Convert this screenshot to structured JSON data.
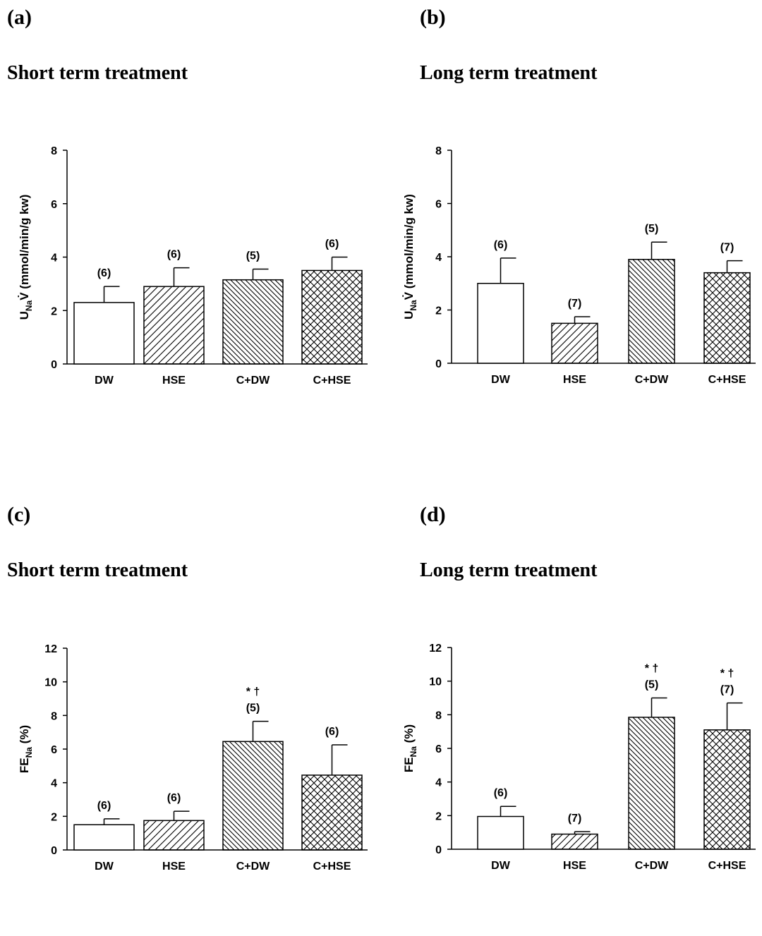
{
  "chart_data": [
    {
      "type": "bar",
      "panel": "(a)",
      "title": "Short term treatment",
      "ylabel_main": "U",
      "ylabel_sub": "Na",
      "ylabel_v": "V̇",
      "ylabel_unit": " (mmol/min/g kw)",
      "ylim": [
        0,
        8
      ],
      "yticks": [
        "0",
        "2",
        "4",
        "6",
        "8"
      ],
      "categories": [
        "DW",
        "HSE",
        "C+DW",
        "C+HSE"
      ],
      "values": [
        2.3,
        2.9,
        3.15,
        3.5
      ],
      "errors": [
        0.6,
        0.7,
        0.4,
        0.5
      ],
      "n_labels": [
        "(6)",
        "(6)",
        "(5)",
        "(6)"
      ],
      "sig_labels": [
        "",
        "",
        "",
        ""
      ]
    },
    {
      "type": "bar",
      "panel": "(b)",
      "title": "Long term treatment",
      "ylabel_main": "U",
      "ylabel_sub": "Na",
      "ylabel_v": "V̇",
      "ylabel_unit": " (mmol/min/g kw)",
      "ylim": [
        0,
        8
      ],
      "yticks": [
        "0",
        "2",
        "4",
        "6",
        "8"
      ],
      "categories": [
        "DW",
        "HSE",
        "C+DW",
        "C+HSE"
      ],
      "values": [
        3.0,
        1.5,
        3.9,
        3.4
      ],
      "errors": [
        0.95,
        0.25,
        0.65,
        0.45
      ],
      "n_labels": [
        "(6)",
        "(7)",
        "(5)",
        "(7)"
      ],
      "sig_labels": [
        "",
        "",
        "",
        ""
      ]
    },
    {
      "type": "bar",
      "panel": "(c)",
      "title": "Short term treatment",
      "ylabel_main": "FE",
      "ylabel_sub": "Na",
      "ylabel_v": "",
      "ylabel_unit": " (%)",
      "ylim": [
        0,
        12
      ],
      "yticks": [
        "0",
        "2",
        "4",
        "6",
        "8",
        "10",
        "12"
      ],
      "categories": [
        "DW",
        "HSE",
        "C+DW",
        "C+HSE"
      ],
      "values": [
        1.5,
        1.75,
        6.45,
        4.45
      ],
      "errors": [
        0.35,
        0.55,
        1.2,
        1.8
      ],
      "n_labels": [
        "(6)",
        "(6)",
        "(5)",
        "(6)"
      ],
      "sig_labels": [
        "",
        "",
        "* †",
        ""
      ]
    },
    {
      "type": "bar",
      "panel": "(d)",
      "title": "Long term treatment",
      "ylabel_main": "FE",
      "ylabel_sub": "Na",
      "ylabel_v": "",
      "ylabel_unit": " (%)",
      "ylim": [
        0,
        12
      ],
      "yticks": [
        "0",
        "2",
        "4",
        "6",
        "8",
        "10",
        "12"
      ],
      "categories": [
        "DW",
        "HSE",
        "C+DW",
        "C+HSE"
      ],
      "values": [
        1.95,
        0.9,
        7.85,
        7.1
      ],
      "errors": [
        0.6,
        0.15,
        1.15,
        1.6
      ],
      "n_labels": [
        "(6)",
        "(7)",
        "(5)",
        "(7)"
      ],
      "sig_labels": [
        "",
        "",
        "* †",
        "* †"
      ]
    }
  ]
}
